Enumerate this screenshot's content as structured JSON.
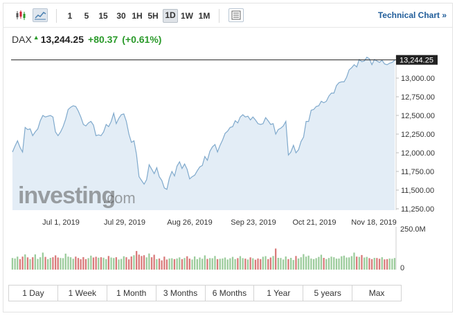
{
  "toolbar": {
    "chart_type_icons": [
      "candlestick-icon",
      "area-chart-icon"
    ],
    "timeframes": [
      "1",
      "5",
      "15",
      "30",
      "1H",
      "5H",
      "1D",
      "1W",
      "1M"
    ],
    "active_timeframe": "1D",
    "settings_icon": "chart-settings-icon",
    "technical_link": "Technical Chart »"
  },
  "quote": {
    "symbol": "DAX",
    "direction_icon": "up-arrow-icon",
    "last": "13,244.25",
    "change": "+80.37",
    "change_pct": "(+0.61%)"
  },
  "watermark": {
    "brand": "investing",
    "tld": ".com"
  },
  "colors": {
    "line": "#7fa9cc",
    "fill": "#e3edf6",
    "up_volume": "#9ccc9c",
    "down_volume": "#d97b7b",
    "positive": "#2a9a2a",
    "link": "#1f5c99"
  },
  "chart_data": [
    {
      "type": "area",
      "title": "DAX",
      "x_tick_labels": [
        "Jul 1, 2019",
        "Jul 29, 2019",
        "Aug 26, 2019",
        "Sep 23, 2019",
        "Oct 21, 2019",
        "Nov 18, 2019"
      ],
      "y_tick_labels": [
        "13,000.00",
        "12,750.00",
        "12,500.00",
        "12,250.00",
        "12,000.00",
        "11,750.00",
        "11,500.00",
        "11,250.00"
      ],
      "y_ticks": [
        13000,
        12750,
        12500,
        12250,
        12000,
        11750,
        11500,
        11250
      ],
      "ylim": [
        11250,
        13300
      ],
      "price_line": 13244.25,
      "price_label": "13,244.25",
      "values": [
        12010,
        12090,
        12160,
        12070,
        12010,
        12340,
        12310,
        12320,
        12230,
        12280,
        12320,
        12430,
        12500,
        12480,
        12490,
        12500,
        12480,
        12280,
        12230,
        12280,
        12350,
        12450,
        12580,
        12610,
        12630,
        12620,
        12560,
        12480,
        12380,
        12360,
        12400,
        12420,
        12370,
        12230,
        12240,
        12230,
        12280,
        12380,
        12350,
        12420,
        12530,
        12390,
        12460,
        12510,
        12520,
        12420,
        12250,
        12140,
        12160,
        11980,
        11680,
        11630,
        11580,
        11640,
        11840,
        11780,
        11720,
        11800,
        11680,
        11630,
        11530,
        11510,
        11660,
        11750,
        11690,
        11820,
        11880,
        11790,
        11850,
        11780,
        11650,
        11680,
        11700,
        11760,
        11810,
        11830,
        11950,
        11900,
        12020,
        12080,
        12110,
        12010,
        12100,
        12170,
        12260,
        12290,
        12340,
        12350,
        12430,
        12400,
        12480,
        12510,
        12480,
        12490,
        12440,
        12480,
        12440,
        12390,
        12380,
        12390,
        12470,
        12430,
        12380,
        12390,
        12250,
        12310,
        12330,
        12360,
        12420,
        11970,
        12010,
        12100,
        12000,
        12040,
        12150,
        12210,
        12420,
        12420,
        12570,
        12580,
        12620,
        12630,
        12690,
        12670,
        12690,
        12760,
        12800,
        12800,
        12900,
        12940,
        12950,
        12950,
        13010,
        13110,
        13140,
        13180,
        13150,
        13250,
        13220,
        13230,
        13280,
        13260,
        13180,
        13250,
        13230,
        13210,
        13240,
        13190,
        13180,
        13200,
        13210,
        13240
      ],
      "volume_label": "250.0M",
      "volume_zero_label": "0",
      "volume_max": 250,
      "volumes": [
        75,
        72,
        84,
        68,
        84,
        98,
        79,
        68,
        80,
        98,
        69,
        80,
        110,
        82,
        68,
        76,
        80,
        92,
        78,
        75,
        74,
        103,
        84,
        80,
        70,
        84,
        75,
        67,
        81,
        68,
        74,
        90,
        78,
        83,
        77,
        80,
        77,
        68,
        88,
        78,
        75,
        80,
        65,
        69,
        86,
        80,
        66,
        85,
        93,
        120,
        97,
        88,
        93,
        79,
        104,
        80,
        96,
        68,
        72,
        60,
        84,
        65,
        72,
        73,
        68,
        72,
        79,
        68,
        75,
        86,
        71,
        65,
        85,
        68,
        78,
        70,
        92,
        69,
        74,
        73,
        88,
        68,
        70,
        72,
        78,
        65,
        73,
        82,
        68,
        74,
        87,
        74,
        71,
        65,
        79,
        73,
        64,
        72,
        68,
        83,
        87,
        68,
        78,
        88,
        136,
        76,
        75,
        65,
        85,
        68,
        76,
        62,
        88,
        72,
        80,
        100,
        84,
        90,
        72,
        68,
        74,
        82,
        96,
        76,
        68,
        75,
        84,
        80,
        71,
        72,
        86,
        90,
        78,
        79,
        87,
        110,
        84,
        82,
        94,
        78,
        82,
        74,
        68,
        76,
        75,
        70,
        80,
        66,
        68,
        72,
        70,
        75
      ]
    }
  ],
  "range_buttons": [
    "1 Day",
    "1 Week",
    "1 Month",
    "3 Months",
    "6 Months",
    "1 Year",
    "5 years",
    "Max"
  ]
}
